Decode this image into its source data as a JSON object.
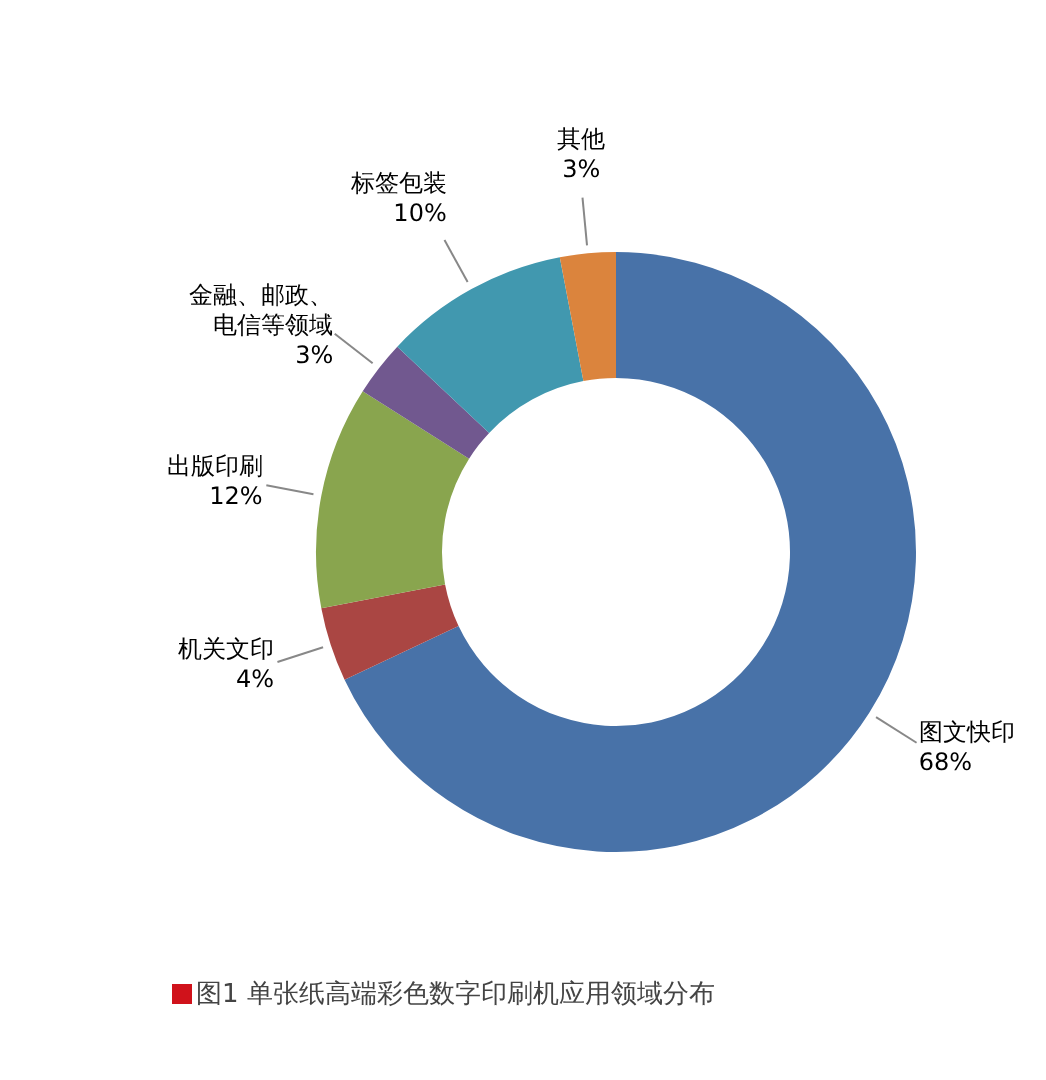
{
  "chart_data": {
    "type": "donut",
    "categories": [
      "图文快印",
      "机关文印",
      "出版印刷",
      "金融、邮政、电信等领域",
      "标签包装",
      "其他"
    ],
    "values": [
      68,
      4,
      12,
      3,
      10,
      3
    ],
    "value_labels": [
      "68%",
      "4%",
      "12%",
      "3%",
      "10%",
      "3%"
    ],
    "colors": [
      "#4872a8",
      "#aa4643",
      "#89a54e",
      "#71588f",
      "#4198af",
      "#db843d"
    ],
    "legend": false,
    "annotations": [
      "图1 单张纸高端彩色数字印刷机应用领域分布"
    ]
  }
}
